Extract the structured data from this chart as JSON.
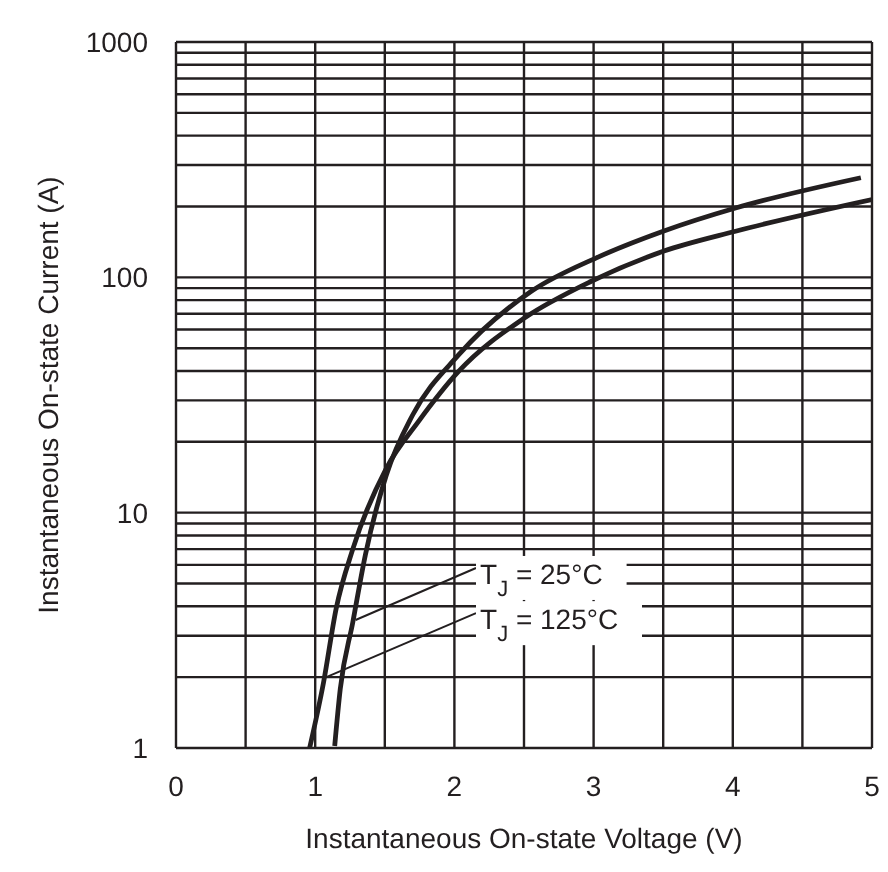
{
  "chart_data": {
    "type": "line",
    "xlabel": "Instantaneous On-state Voltage (V)",
    "ylabel": "Instantaneous On-state Current (A)",
    "log": "y",
    "grid": true,
    "legend": false,
    "marker": "none",
    "line_style": "solid",
    "xlim": [
      0,
      5
    ],
    "xticks": [
      0,
      {
        "value": 0.5,
        "label": null
      },
      1,
      {
        "value": 1.5,
        "label": null
      },
      2,
      {
        "value": 2.5,
        "label": null
      },
      3,
      {
        "value": 3.5,
        "label": null
      },
      4,
      {
        "value": 4.5,
        "label": null
      },
      5
    ],
    "ylim": [
      1,
      1000
    ],
    "yticks": [
      1,
      {
        "value": 2,
        "label": null
      },
      {
        "value": 3,
        "label": null
      },
      {
        "value": 4,
        "label": null
      },
      {
        "value": 5,
        "label": null
      },
      {
        "value": 6,
        "label": null
      },
      {
        "value": 7,
        "label": null
      },
      {
        "value": 8,
        "label": null
      },
      {
        "value": 9,
        "label": null
      },
      10,
      {
        "value": 20,
        "label": null
      },
      {
        "value": 30,
        "label": null
      },
      {
        "value": 40,
        "label": null
      },
      {
        "value": 50,
        "label": null
      },
      {
        "value": 60,
        "label": null
      },
      {
        "value": 70,
        "label": null
      },
      {
        "value": 80,
        "label": null
      },
      {
        "value": 90,
        "label": null
      },
      100,
      {
        "value": 200,
        "label": null
      },
      {
        "value": 300,
        "label": null
      },
      {
        "value": 400,
        "label": null
      },
      {
        "value": 500,
        "label": null
      },
      {
        "value": 600,
        "label": null
      },
      {
        "value": 700,
        "label": null
      },
      {
        "value": 800,
        "label": null
      },
      {
        "value": 900,
        "label": null
      },
      1000
    ],
    "series": [
      {
        "color": "#231f20",
        "x": [
          1.14,
          1.18,
          1.27,
          1.36,
          1.51,
          1.7,
          2.03,
          2.55,
          3.02,
          3.5,
          4.02,
          4.92
        ],
        "values": [
          1.02,
          1.78,
          3.42,
          6.6,
          14.4,
          26,
          46.8,
          87,
          121,
          157,
          197,
          265
        ]
      },
      {
        "color": "#231f20",
        "x": [
          0.96,
          1.06,
          1.15,
          1.27,
          1.51,
          1.74,
          2.03,
          2.5,
          2.98,
          3.5,
          4.02,
          5
        ],
        "values": [
          1,
          1.9,
          3.9,
          7,
          15.4,
          24.3,
          39.8,
          67,
          96,
          129,
          157,
          214
        ]
      }
    ],
    "annotations": [
      {
        "text": "T$_{J}$ = 25°C",
        "x": 1.29,
        "y": 3.5
      },
      {
        "text": "T$_{J}$ = 125°C",
        "x": 1.08,
        "y": 2
      }
    ]
  }
}
